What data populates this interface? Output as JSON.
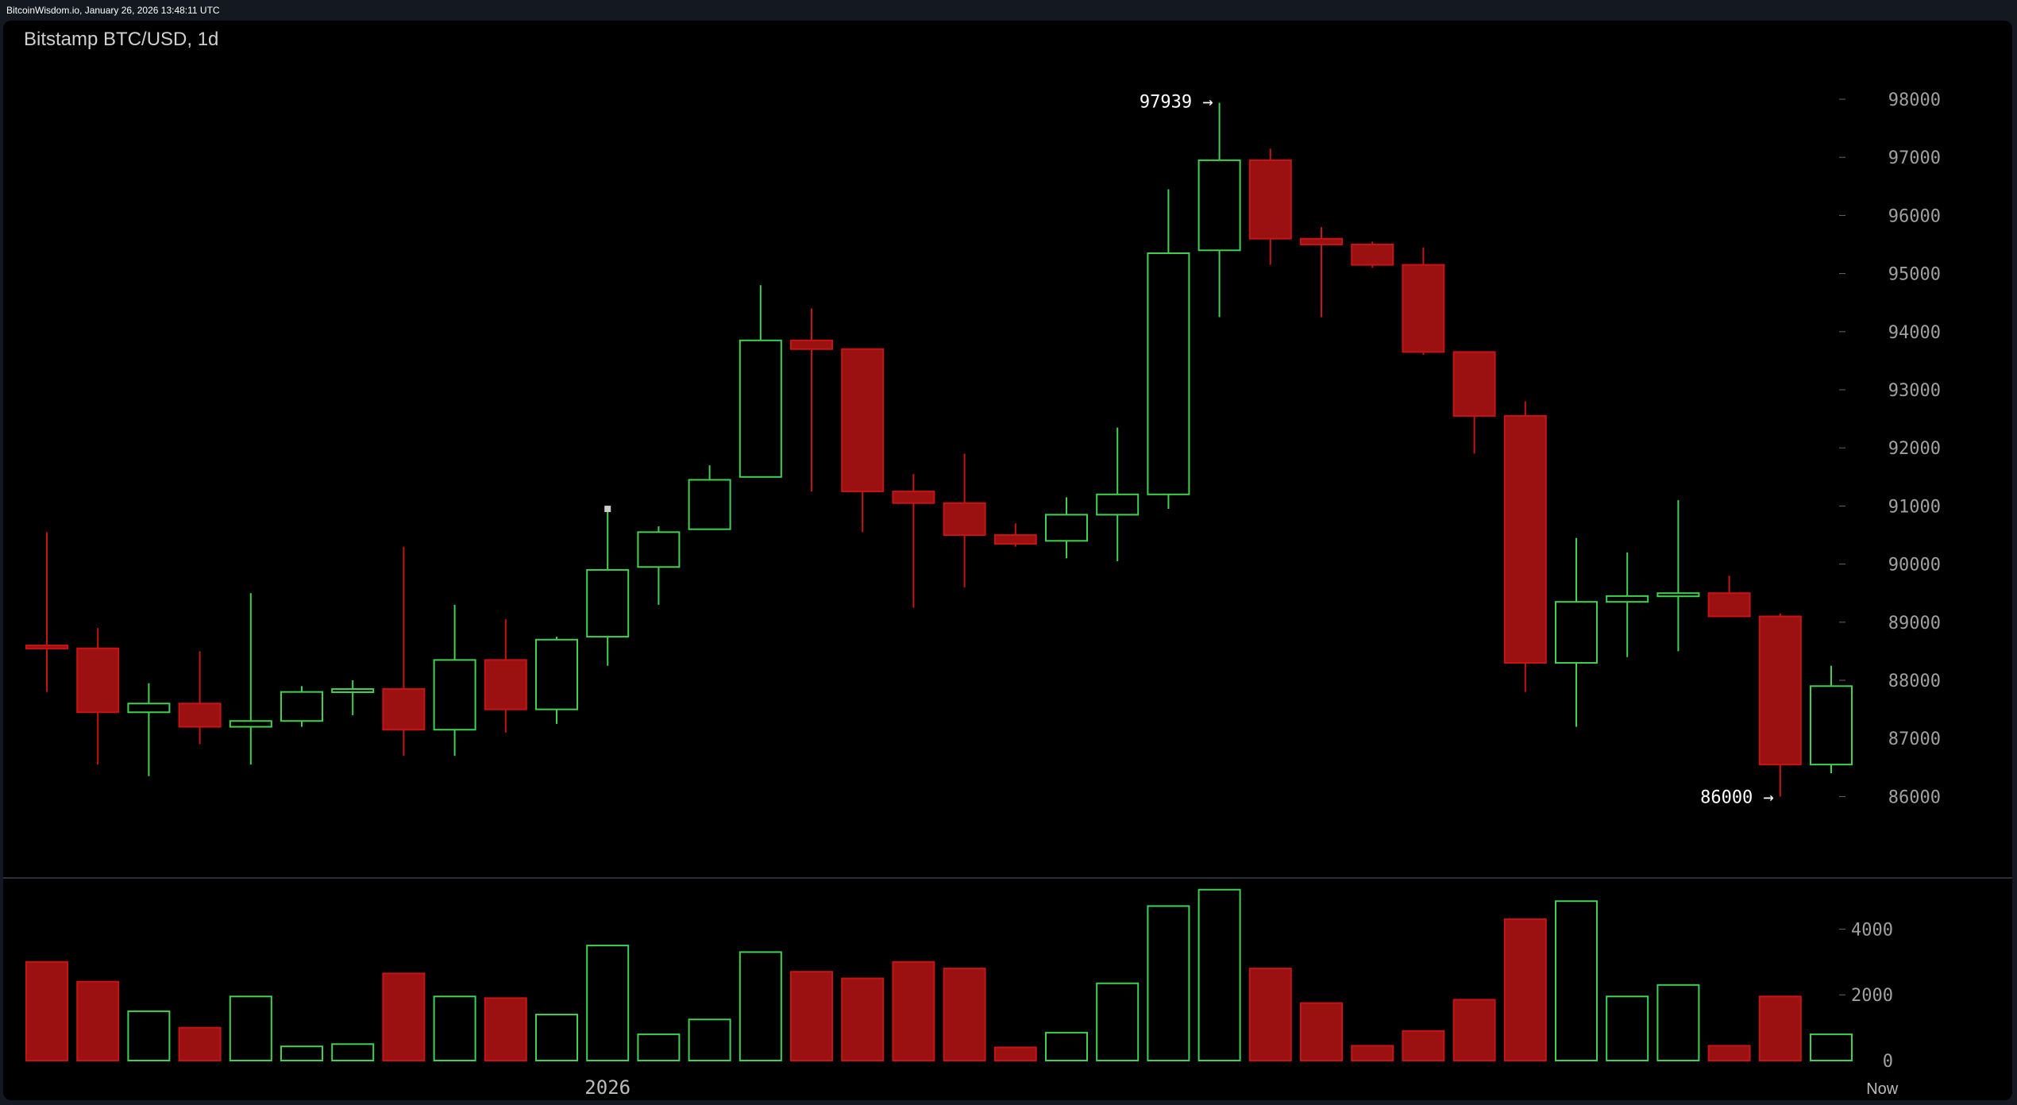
{
  "header": {
    "caption": "BitcoinWisdom.io, January 26, 2026 13:48:11 UTC"
  },
  "chart_data": {
    "type": "candlestick",
    "title": "Bitstamp BTC/USD, 1d",
    "colors": {
      "up": "#3fd14f",
      "down": "#c61414",
      "down_fill": "#9b1111",
      "axis_text": "#a0a0a0",
      "background": "#000000"
    },
    "price_axis": {
      "ticks": [
        86000,
        87000,
        88000,
        89000,
        90000,
        91000,
        92000,
        93000,
        94000,
        95000,
        96000,
        97000,
        98000
      ],
      "range": [
        85000,
        99000
      ]
    },
    "volume_axis": {
      "ticks": [
        0,
        2000,
        4000
      ],
      "range": [
        0,
        5200
      ]
    },
    "x_labels": [
      {
        "label": "2026",
        "index": 11
      },
      {
        "label": "Now",
        "index": 36
      }
    ],
    "annotations": [
      {
        "label": "97939 →",
        "index": 23,
        "value": 97939,
        "anchor": "high"
      },
      {
        "label": "86000 →",
        "index": 34,
        "value": 86000,
        "anchor": "low"
      }
    ],
    "candles": [
      {
        "o": 88600,
        "h": 90550,
        "l": 87800,
        "c": 88550,
        "v": 3000
      },
      {
        "o": 88550,
        "h": 88900,
        "l": 86550,
        "c": 87450,
        "v": 2400
      },
      {
        "o": 87450,
        "h": 87950,
        "l": 86350,
        "c": 87600,
        "v": 1500
      },
      {
        "o": 87600,
        "h": 88500,
        "l": 86900,
        "c": 87200,
        "v": 1000
      },
      {
        "o": 87200,
        "h": 89500,
        "l": 86550,
        "c": 87300,
        "v": 1950
      },
      {
        "o": 87300,
        "h": 87900,
        "l": 87200,
        "c": 87800,
        "v": 430
      },
      {
        "o": 87800,
        "h": 88000,
        "l": 87400,
        "c": 87850,
        "v": 500
      },
      {
        "o": 87850,
        "h": 90300,
        "l": 86700,
        "c": 87150,
        "v": 2650
      },
      {
        "o": 87150,
        "h": 89300,
        "l": 86700,
        "c": 88350,
        "v": 1950
      },
      {
        "o": 88350,
        "h": 89050,
        "l": 87100,
        "c": 87500,
        "v": 1900
      },
      {
        "o": 87500,
        "h": 88750,
        "l": 87250,
        "c": 88700,
        "v": 1400
      },
      {
        "o": 88750,
        "h": 90950,
        "l": 88250,
        "c": 89900,
        "v": 3500
      },
      {
        "o": 89950,
        "h": 90650,
        "l": 89300,
        "c": 90550,
        "v": 800
      },
      {
        "o": 90600,
        "h": 91700,
        "l": 90600,
        "c": 91450,
        "v": 1250
      },
      {
        "o": 91500,
        "h": 94800,
        "l": 91500,
        "c": 93850,
        "v": 3300
      },
      {
        "o": 93850,
        "h": 94400,
        "l": 91250,
        "c": 93700,
        "v": 2700
      },
      {
        "o": 93700,
        "h": 93700,
        "l": 90550,
        "c": 91250,
        "v": 2500
      },
      {
        "o": 91250,
        "h": 91550,
        "l": 89250,
        "c": 91050,
        "v": 3000
      },
      {
        "o": 91050,
        "h": 91900,
        "l": 89600,
        "c": 90500,
        "v": 2800
      },
      {
        "o": 90500,
        "h": 90700,
        "l": 90300,
        "c": 90350,
        "v": 400
      },
      {
        "o": 90400,
        "h": 91150,
        "l": 90100,
        "c": 90850,
        "v": 850
      },
      {
        "o": 90850,
        "h": 92350,
        "l": 90050,
        "c": 91200,
        "v": 2350
      },
      {
        "o": 91200,
        "h": 96450,
        "l": 90950,
        "c": 95350,
        "v": 4700
      },
      {
        "o": 95400,
        "h": 97939,
        "l": 94250,
        "c": 96950,
        "v": 5200
      },
      {
        "o": 96950,
        "h": 97150,
        "l": 95150,
        "c": 95600,
        "v": 2800
      },
      {
        "o": 95600,
        "h": 95800,
        "l": 94250,
        "c": 95500,
        "v": 1750
      },
      {
        "o": 95500,
        "h": 95550,
        "l": 95100,
        "c": 95150,
        "v": 450
      },
      {
        "o": 95150,
        "h": 95450,
        "l": 93600,
        "c": 93650,
        "v": 900
      },
      {
        "o": 93650,
        "h": 93650,
        "l": 91900,
        "c": 92550,
        "v": 1850
      },
      {
        "o": 92550,
        "h": 92800,
        "l": 87800,
        "c": 88300,
        "v": 4300
      },
      {
        "o": 88300,
        "h": 90450,
        "l": 87200,
        "c": 89350,
        "v": 4850
      },
      {
        "o": 89350,
        "h": 90200,
        "l": 88400,
        "c": 89450,
        "v": 1950
      },
      {
        "o": 89450,
        "h": 91100,
        "l": 88500,
        "c": 89500,
        "v": 2300
      },
      {
        "o": 89500,
        "h": 89800,
        "l": 89100,
        "c": 89100,
        "v": 450
      },
      {
        "o": 89100,
        "h": 89150,
        "l": 86000,
        "c": 86550,
        "v": 1950
      },
      {
        "o": 86550,
        "h": 88250,
        "l": 86400,
        "c": 87900,
        "v": 800
      }
    ]
  }
}
